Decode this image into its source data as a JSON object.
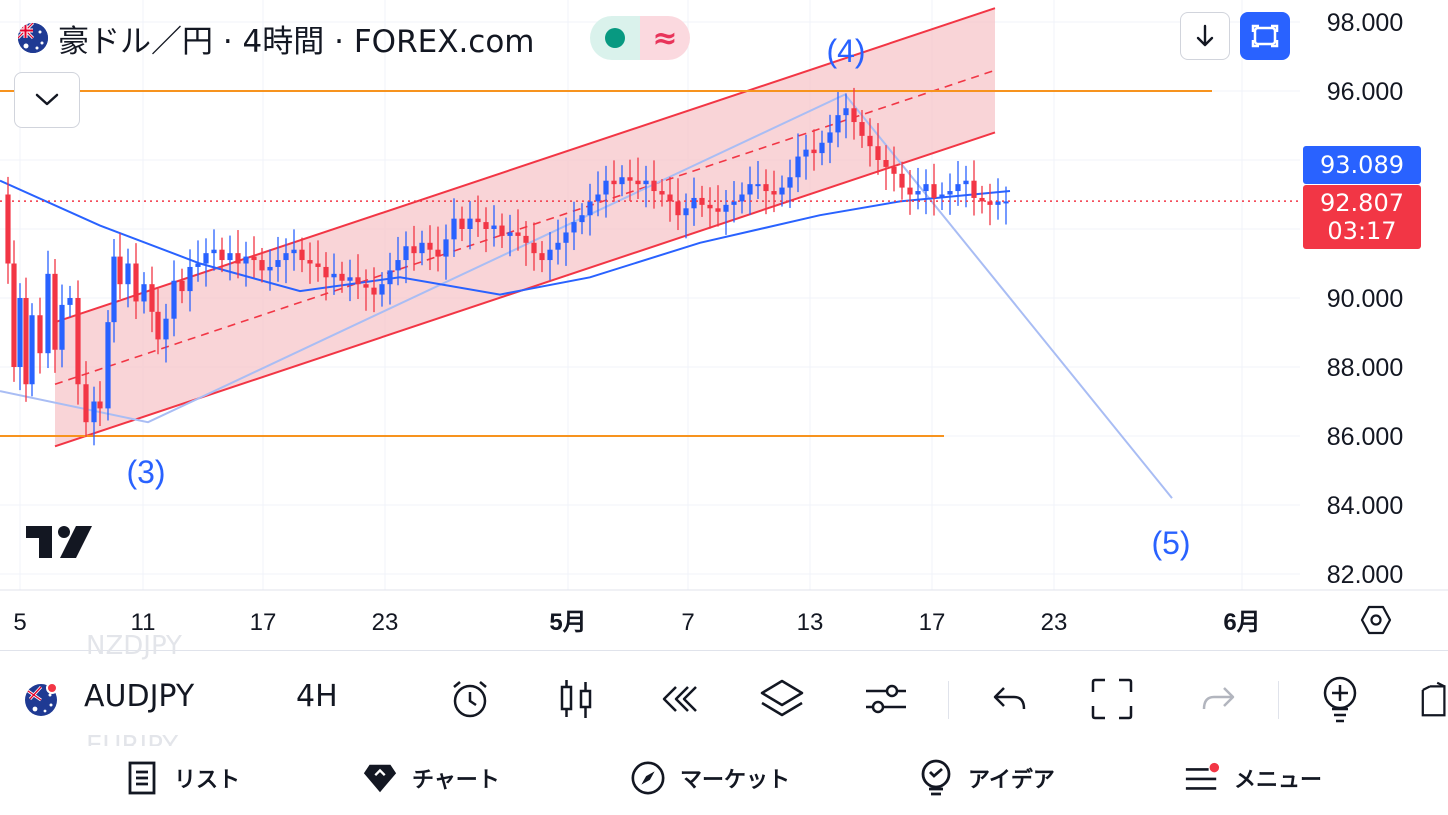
{
  "header": {
    "symbol_title": "豪ドル／円 · 4時間 · FOREX.com",
    "status_glyph": "≈"
  },
  "price_axis": {
    "labels": [
      "98.000",
      "96.000",
      "93.089",
      "92.807",
      "90.000",
      "88.000",
      "86.000",
      "84.000",
      "82.000"
    ],
    "tag_blue": "93.089",
    "tag_red_price": "92.807",
    "tag_red_countdown": "03:17"
  },
  "time_axis": {
    "labels": [
      "5",
      "11",
      "17",
      "23",
      "5月",
      "7",
      "13",
      "17",
      "23",
      "6月"
    ]
  },
  "wave_labels": {
    "w3": "(3)",
    "w4": "(4)",
    "w5": "(5)"
  },
  "colors": {
    "up": "#2962ff",
    "down": "#f23645",
    "channel_fill": "#f7c5c9",
    "channel_line": "#f23645",
    "ma": "#2962ff",
    "horizontal": "#f7931e",
    "wave_line": "#a9bdf4",
    "price_line": "#f23645"
  },
  "chart_data": {
    "type": "candlestick",
    "symbol": "AUDJPY",
    "interval": "4H",
    "ylim": [
      81.5,
      98.5
    ],
    "current_price": 92.807,
    "ma_value": 93.089,
    "horizontal_levels": [
      96.0,
      86.0
    ],
    "ma_points": [
      [
        0,
        93.4
      ],
      [
        100,
        92.1
      ],
      [
        200,
        91.0
      ],
      [
        300,
        90.2
      ],
      [
        400,
        90.6
      ],
      [
        500,
        90.1
      ],
      [
        590,
        90.6
      ],
      [
        700,
        91.6
      ],
      [
        820,
        92.4
      ],
      [
        900,
        92.8
      ],
      [
        1010,
        93.1
      ]
    ],
    "channel": {
      "lower_start": [
        55,
        85.7
      ],
      "lower_end": [
        995,
        94.8
      ],
      "upper_start": [
        55,
        89.3
      ],
      "upper_end": [
        995,
        98.4
      ],
      "mid_start": [
        55,
        87.5
      ],
      "mid_end": [
        995,
        96.6
      ]
    },
    "wave_path": [
      [
        0,
        87.3
      ],
      [
        148,
        86.4
      ],
      [
        845,
        95.9
      ],
      [
        1172,
        84.2
      ]
    ],
    "price_path": [
      [
        2,
        93.0
      ],
      [
        8,
        91.0
      ],
      [
        14,
        88.0
      ],
      [
        20,
        90.0
      ],
      [
        26,
        87.5
      ],
      [
        32,
        89.5
      ],
      [
        40,
        88.4
      ],
      [
        48,
        90.7
      ],
      [
        55,
        88.5
      ],
      [
        62,
        89.8
      ],
      [
        70,
        90.0
      ],
      [
        78,
        87.5
      ],
      [
        86,
        86.4
      ],
      [
        94,
        87.0
      ],
      [
        100,
        86.8
      ],
      [
        108,
        89.3
      ],
      [
        114,
        91.2
      ],
      [
        120,
        90.4
      ],
      [
        128,
        91.0
      ],
      [
        136,
        89.9
      ],
      [
        144,
        90.4
      ],
      [
        152,
        89.6
      ],
      [
        158,
        88.8
      ],
      [
        166,
        89.4
      ],
      [
        174,
        90.5
      ],
      [
        182,
        90.2
      ],
      [
        190,
        90.9
      ],
      [
        198,
        91.0
      ],
      [
        206,
        91.3
      ],
      [
        214,
        91.4
      ],
      [
        222,
        91.1
      ],
      [
        230,
        91.3
      ],
      [
        238,
        91.0
      ],
      [
        246,
        91.2
      ],
      [
        254,
        91.1
      ],
      [
        262,
        90.8
      ],
      [
        270,
        90.9
      ],
      [
        278,
        91.1
      ],
      [
        286,
        91.3
      ],
      [
        294,
        91.4
      ],
      [
        302,
        91.1
      ],
      [
        310,
        91.0
      ],
      [
        318,
        90.9
      ],
      [
        326,
        90.6
      ],
      [
        334,
        90.7
      ],
      [
        342,
        90.5
      ],
      [
        350,
        90.6
      ],
      [
        358,
        90.4
      ],
      [
        366,
        90.3
      ],
      [
        374,
        90.1
      ],
      [
        382,
        90.4
      ],
      [
        390,
        90.8
      ],
      [
        398,
        91.1
      ],
      [
        406,
        91.5
      ],
      [
        414,
        91.3
      ],
      [
        422,
        91.6
      ],
      [
        430,
        91.4
      ],
      [
        438,
        91.2
      ],
      [
        446,
        91.7
      ],
      [
        454,
        92.3
      ],
      [
        462,
        92.0
      ],
      [
        470,
        92.3
      ],
      [
        478,
        92.2
      ],
      [
        486,
        92.0
      ],
      [
        494,
        92.1
      ],
      [
        502,
        91.8
      ],
      [
        510,
        91.9
      ],
      [
        518,
        91.8
      ],
      [
        526,
        91.6
      ],
      [
        534,
        91.3
      ],
      [
        542,
        91.1
      ],
      [
        550,
        91.4
      ],
      [
        558,
        91.6
      ],
      [
        566,
        91.9
      ],
      [
        574,
        92.2
      ],
      [
        582,
        92.4
      ],
      [
        590,
        92.8
      ],
      [
        598,
        93.0
      ],
      [
        606,
        93.4
      ],
      [
        614,
        93.3
      ],
      [
        622,
        93.5
      ],
      [
        630,
        93.4
      ],
      [
        638,
        93.3
      ],
      [
        646,
        93.4
      ],
      [
        654,
        93.1
      ],
      [
        662,
        93.0
      ],
      [
        670,
        92.8
      ],
      [
        678,
        92.4
      ],
      [
        686,
        92.6
      ],
      [
        694,
        92.9
      ],
      [
        702,
        92.7
      ],
      [
        710,
        92.6
      ],
      [
        718,
        92.5
      ],
      [
        726,
        92.7
      ],
      [
        734,
        92.8
      ],
      [
        742,
        93.0
      ],
      [
        750,
        93.3
      ],
      [
        758,
        93.3
      ],
      [
        766,
        93.1
      ],
      [
        774,
        93.0
      ],
      [
        782,
        93.2
      ],
      [
        790,
        93.5
      ],
      [
        798,
        94.1
      ],
      [
        806,
        94.3
      ],
      [
        814,
        94.2
      ],
      [
        822,
        94.5
      ],
      [
        830,
        94.8
      ],
      [
        838,
        95.3
      ],
      [
        846,
        95.5
      ],
      [
        854,
        95.1
      ],
      [
        862,
        94.7
      ],
      [
        870,
        94.4
      ],
      [
        878,
        94.0
      ],
      [
        886,
        93.8
      ],
      [
        894,
        93.6
      ],
      [
        902,
        93.2
      ],
      [
        910,
        93.0
      ],
      [
        918,
        93.1
      ],
      [
        926,
        93.3
      ],
      [
        934,
        92.9
      ],
      [
        942,
        93.0
      ],
      [
        950,
        93.1
      ],
      [
        958,
        93.3
      ],
      [
        966,
        93.4
      ],
      [
        974,
        92.9
      ],
      [
        982,
        92.8
      ],
      [
        990,
        92.7
      ],
      [
        998,
        92.8
      ],
      [
        1006,
        92.8
      ]
    ]
  },
  "toolbar": {
    "ghost_above": "NZDJPY",
    "ghost_below": "EURJPY",
    "symbol": "AUDJPY",
    "interval": "4H"
  },
  "bottom_nav": {
    "list": "リスト",
    "chart": "チャート",
    "market": "マーケット",
    "ideas": "アイデア",
    "menu": "メニュー"
  }
}
